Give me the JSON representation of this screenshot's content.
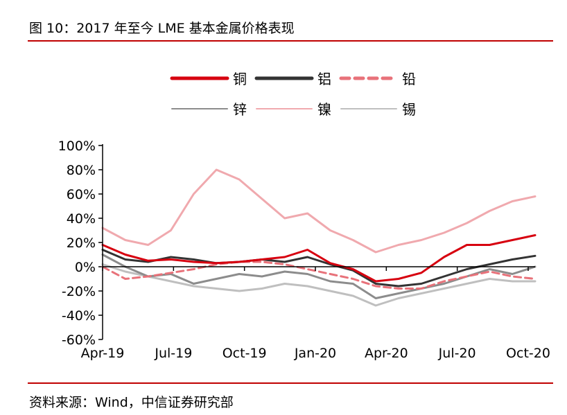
{
  "header": {
    "title": "图 10：2017 年至今 LME 基本金属价格表现"
  },
  "footer": {
    "source": "资料来源：Wind，中信证券研究部"
  },
  "chart_data": {
    "type": "line",
    "y_unit": "%",
    "ylim": [
      -60,
      100
    ],
    "y_ticks": [
      "100%",
      "80%",
      "60%",
      "40%",
      "20%",
      "0%",
      "-20%",
      "-40%",
      "-60%"
    ],
    "x_ticks": [
      "Apr-19",
      "Jul-19",
      "Oct-19",
      "Jan-20",
      "Apr-20",
      "Jul-20",
      "Oct-20"
    ],
    "legend_position": "top",
    "x": [
      "2019-04",
      "2019-05",
      "2019-06",
      "2019-07",
      "2019-08",
      "2019-09",
      "2019-10",
      "2019-11",
      "2019-12",
      "2020-01",
      "2020-02",
      "2020-03",
      "2020-04",
      "2020-05",
      "2020-06",
      "2020-07",
      "2020-08",
      "2020-09",
      "2020-10",
      "2020-11"
    ],
    "series": [
      {
        "name": "铜",
        "color": "#d7000f",
        "dash": "solid",
        "width": 3,
        "values": [
          18,
          10,
          5,
          6,
          4,
          3,
          4,
          6,
          8,
          14,
          3,
          -2,
          -12,
          -10,
          -5,
          8,
          18,
          18,
          22,
          26
        ]
      },
      {
        "name": "铝",
        "color": "#333333",
        "dash": "solid",
        "width": 3,
        "values": [
          14,
          6,
          4,
          8,
          6,
          3,
          4,
          6,
          4,
          8,
          2,
          -3,
          -14,
          -16,
          -14,
          -8,
          -2,
          2,
          6,
          9
        ]
      },
      {
        "name": "铅",
        "color": "#e8727a",
        "dash": "dash",
        "width": 3,
        "values": [
          0,
          -10,
          -8,
          -5,
          -2,
          2,
          4,
          4,
          2,
          -2,
          -6,
          -10,
          -16,
          -18,
          -18,
          -12,
          -8,
          -4,
          -8,
          -10
        ]
      },
      {
        "name": "锌",
        "color": "#8c8c8c",
        "dash": "solid",
        "width": 3,
        "values": [
          10,
          0,
          -8,
          -6,
          -14,
          -10,
          -6,
          -8,
          -4,
          -6,
          -12,
          -14,
          -26,
          -22,
          -18,
          -14,
          -8,
          -2,
          -6,
          0
        ]
      },
      {
        "name": "镍",
        "color": "#f0a9ae",
        "dash": "solid",
        "width": 3,
        "values": [
          32,
          22,
          18,
          30,
          60,
          80,
          72,
          56,
          40,
          44,
          30,
          22,
          12,
          18,
          22,
          28,
          36,
          46,
          54,
          58
        ]
      },
      {
        "name": "锡",
        "color": "#bfbfbf",
        "dash": "solid",
        "width": 3,
        "values": [
          2,
          -4,
          -8,
          -12,
          -16,
          -18,
          -20,
          -18,
          -14,
          -16,
          -20,
          -24,
          -32,
          -26,
          -22,
          -18,
          -14,
          -10,
          -12,
          -12
        ]
      }
    ]
  }
}
